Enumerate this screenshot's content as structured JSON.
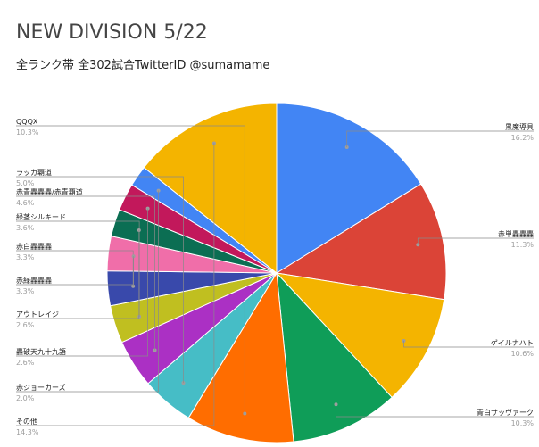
{
  "chart_data": {
    "type": "pie",
    "title": "NEW DIVISION 5/22",
    "subtitle": "全ランク帯 全302試合TwitterID @sumamame",
    "slices": [
      {
        "label": "黒魔導具",
        "percent": 16.2,
        "percent_label": "16.2%",
        "color": "#4285f4",
        "side": "right"
      },
      {
        "label": "赤単轟轟轟",
        "percent": 11.3,
        "percent_label": "11.3%",
        "color": "#db4437",
        "side": "right"
      },
      {
        "label": "ゲイルナハト",
        "percent": 10.6,
        "percent_label": "10.6%",
        "color": "#f4b400",
        "side": "right"
      },
      {
        "label": "青白サッヴァーク",
        "percent": 10.3,
        "percent_label": "10.3%",
        "color": "#0f9d58",
        "side": "right"
      },
      {
        "label": "QQQX",
        "percent": 10.3,
        "percent_label": "10.3%",
        "color": "#ff6d00",
        "side": "left"
      },
      {
        "label": "ラッカ覇道",
        "percent": 5.0,
        "percent_label": "5.0%",
        "color": "#46bdc6",
        "side": "left"
      },
      {
        "label": "赤青轟轟轟/赤青覇道",
        "percent": 4.6,
        "percent_label": "4.6%",
        "color": "#ab30c4",
        "side": "left"
      },
      {
        "label": "緑茎シルキード",
        "percent": 3.6,
        "percent_label": "3.6%",
        "color": "#c0bf20",
        "side": "left"
      },
      {
        "label": "赤白轟轟轟",
        "percent": 3.3,
        "percent_label": "3.3%",
        "color": "#3949ab",
        "side": "left"
      },
      {
        "label": "赤緑轟轟轟",
        "percent": 3.3,
        "percent_label": "3.3%",
        "color": "#f06ea9",
        "side": "left"
      },
      {
        "label": "アウトレイジ",
        "percent": 2.6,
        "percent_label": "2.6%",
        "color": "#0b6e53",
        "side": "left"
      },
      {
        "label": "轟破天九十九語",
        "percent": 2.6,
        "percent_label": "2.6%",
        "color": "#c2185b",
        "side": "left"
      },
      {
        "label": "赤ジョーカーズ",
        "percent": 2.0,
        "percent_label": "2.0%",
        "color": "#4285f4",
        "side": "left"
      },
      {
        "label": "その他",
        "percent": 14.3,
        "percent_label": "14.3%",
        "color": "#f4b400",
        "side": "left"
      }
    ],
    "legend": "none"
  }
}
